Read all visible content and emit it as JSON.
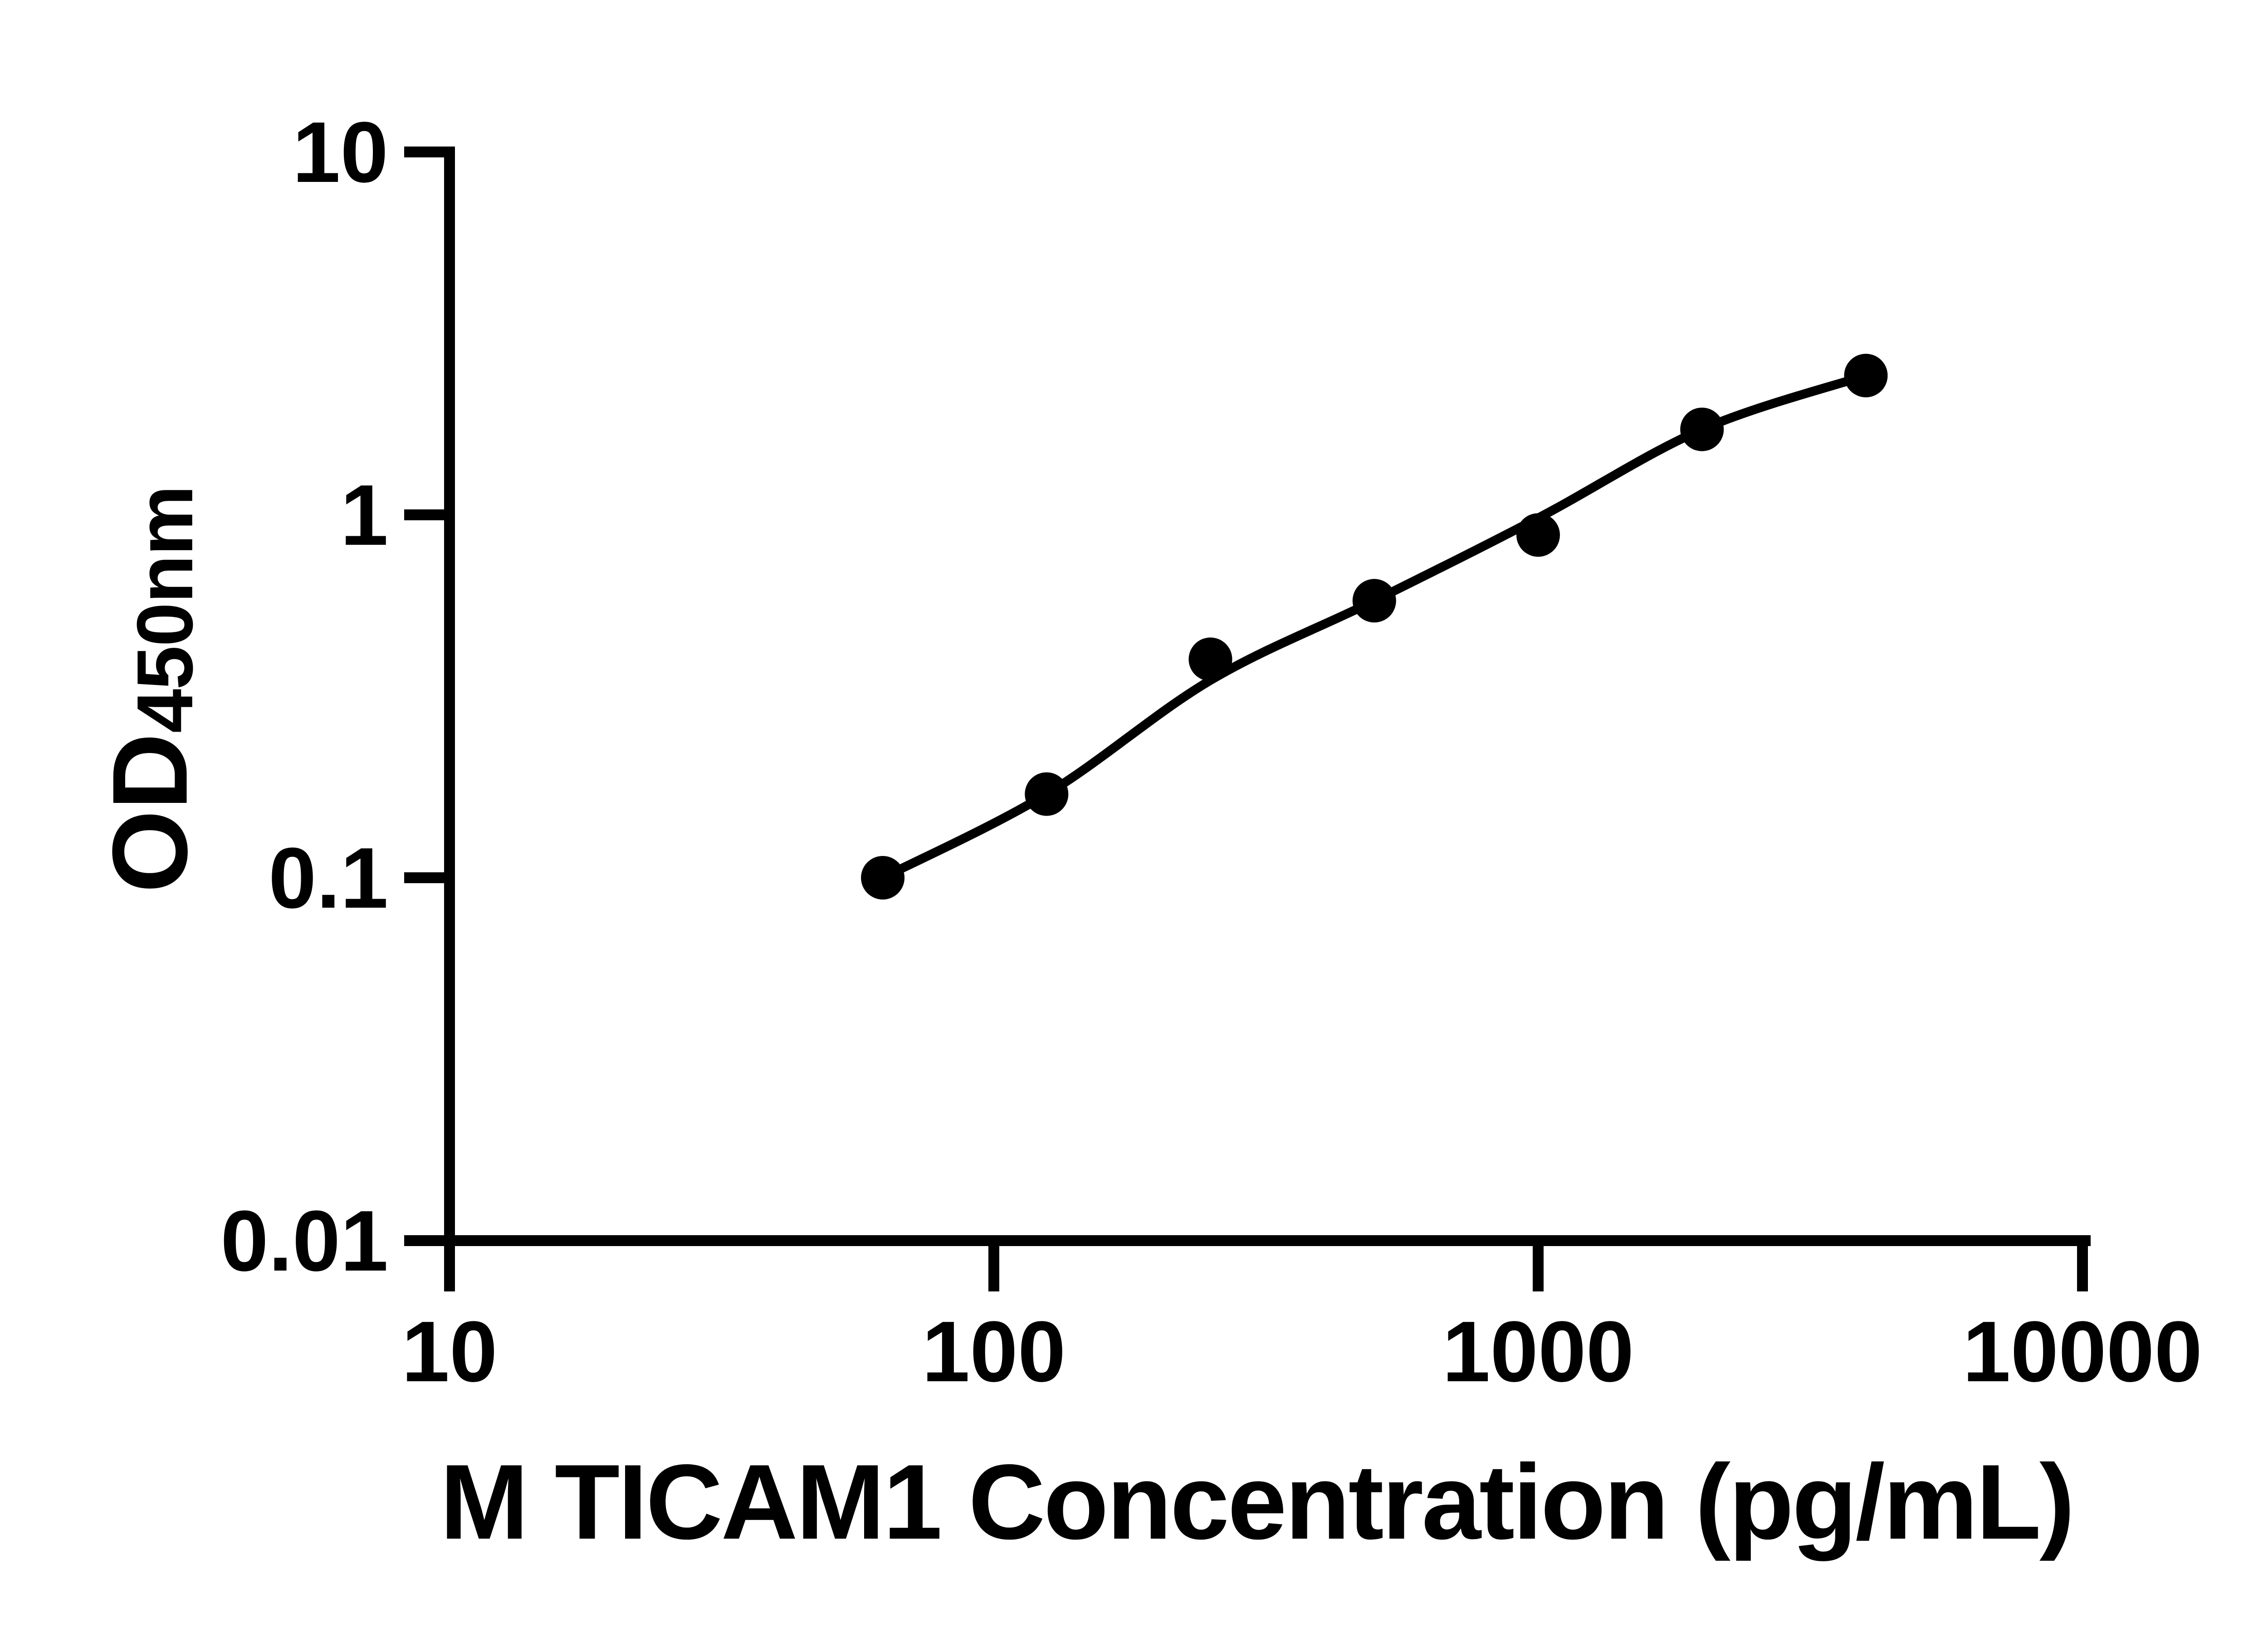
{
  "chart_data": {
    "type": "scatter",
    "title": "",
    "xlabel": "M TICAM1 Concentration (pg/mL)",
    "ylabel_main": "OD",
    "ylabel_sub": "450nm",
    "x_scale": "log10",
    "y_scale": "log10",
    "xlim": [
      10,
      10000
    ],
    "ylim": [
      0.01,
      10
    ],
    "grid": "off",
    "legend": "none",
    "x_ticks": [
      10,
      100,
      1000,
      10000
    ],
    "x_tick_labels": [
      "10",
      "100",
      "1000",
      "10000"
    ],
    "y_ticks": [
      10,
      1,
      0.1,
      0.01
    ],
    "y_tick_labels": [
      "10",
      "1",
      "0.1",
      "0.01"
    ],
    "series": [
      {
        "name": "standard-points",
        "role": "scatter",
        "marker": "filled-circle",
        "x": [
          62.5,
          125,
          250,
          500,
          1000,
          2000,
          4000
        ],
        "y": [
          0.1,
          0.17,
          0.4,
          0.58,
          0.88,
          1.72,
          2.42
        ]
      },
      {
        "name": "fitted-curve",
        "role": "line",
        "x": [
          62.5,
          125,
          250,
          500,
          1000,
          2000,
          4000
        ],
        "y": [
          0.1,
          0.17,
          0.35,
          0.58,
          0.98,
          1.72,
          2.42
        ]
      }
    ],
    "colors": {
      "points": "#000000",
      "line": "#000000",
      "axis": "#000000",
      "text": "#000000",
      "background": "#ffffff"
    }
  }
}
